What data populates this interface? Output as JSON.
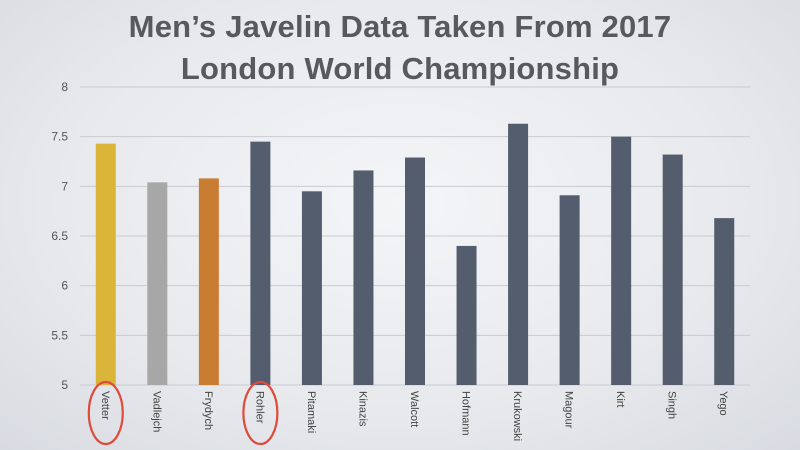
{
  "chart_data": {
    "type": "bar",
    "title_lines": [
      "Men’s Javelin Data Taken From 2017",
      "London World Championship"
    ],
    "categories": [
      "Vetter",
      "Vadlejch",
      "Frydych",
      "Rohler",
      "Pitamaki",
      "Kinazis",
      "Walcott",
      "Hofmann",
      "Krukowski",
      "Magour",
      "Kirt",
      "Singh",
      "Yego"
    ],
    "values": [
      7.43,
      7.04,
      7.08,
      7.45,
      6.95,
      7.16,
      7.29,
      6.4,
      7.63,
      6.91,
      7.5,
      7.32,
      6.68
    ],
    "ylim": [
      5,
      8
    ],
    "yticks": [
      "5",
      "5.5",
      "6",
      "6.5",
      "7",
      "7.5",
      "8"
    ],
    "ytick_values": [
      5,
      5.5,
      6,
      6.5,
      7,
      7.5,
      8
    ],
    "colors": [
      "#dbb43a",
      "#a7a7a7",
      "#c97d32",
      "#545d6d",
      "#545d6d",
      "#545d6d",
      "#545d6d",
      "#545d6d",
      "#545d6d",
      "#545d6d",
      "#545d6d",
      "#545d6d",
      "#545d6d"
    ],
    "highlight_circles": [
      "Vetter",
      "Rohler"
    ],
    "circle_color": "#e04a3a",
    "grid": true,
    "legend": "none"
  }
}
